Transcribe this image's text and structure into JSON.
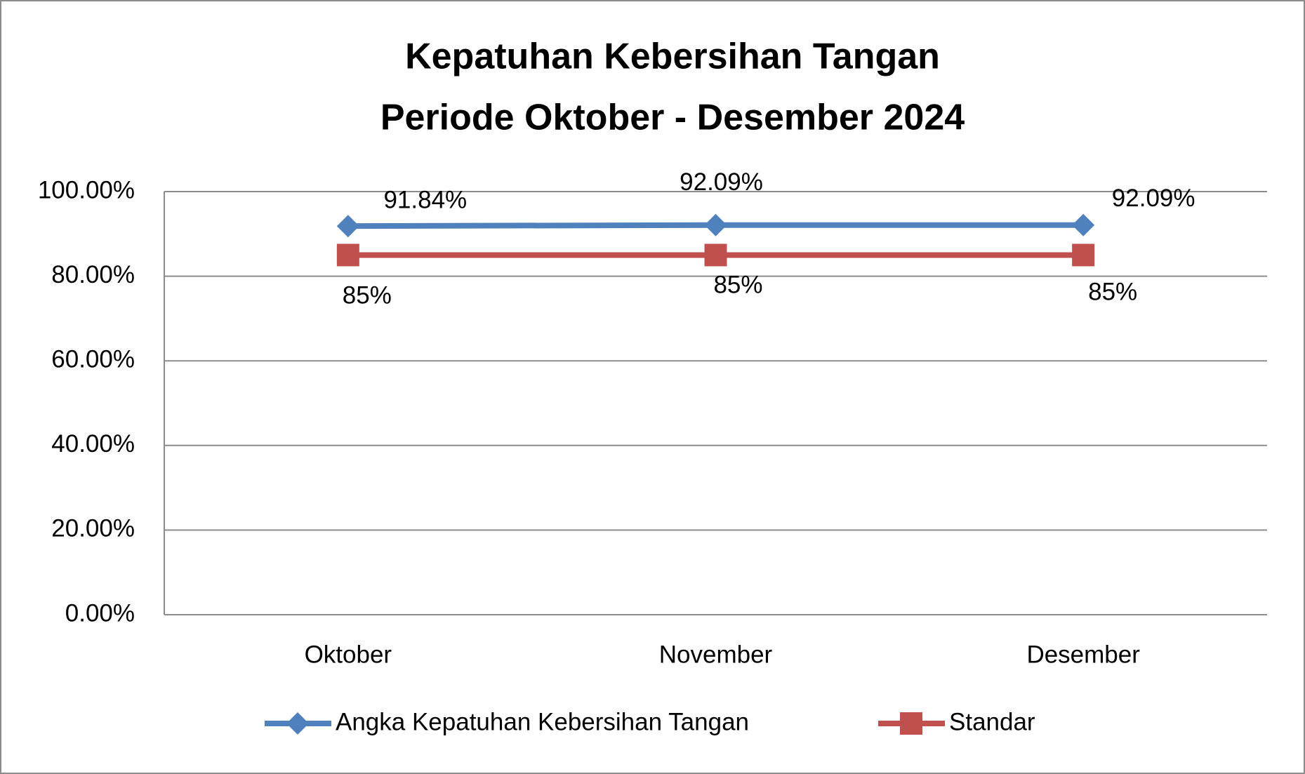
{
  "chart_data": {
    "type": "line",
    "title": "Kepatuhan Kebersihan Tangan",
    "subtitle": "Periode Oktober - Desember 2024",
    "categories": [
      "Oktober",
      "November",
      "Desember"
    ],
    "series": [
      {
        "name": "Angka Kepatuhan Kebersihan Tangan",
        "color": "#4f81bd",
        "marker": "diamond",
        "values": [
          91.84,
          92.09,
          92.09
        ],
        "value_labels": [
          "91.84%",
          "92.09%",
          "92.09%"
        ]
      },
      {
        "name": "Standar",
        "color": "#c0504d",
        "marker": "square",
        "values": [
          85,
          85,
          85
        ],
        "value_labels": [
          "85%",
          "85%",
          "85%"
        ]
      }
    ],
    "ylim": [
      0,
      100
    ],
    "yticks": [
      {
        "value": 0,
        "label": "0.00%"
      },
      {
        "value": 20,
        "label": "20.00%"
      },
      {
        "value": 40,
        "label": "40.00%"
      },
      {
        "value": 60,
        "label": "60.00%"
      },
      {
        "value": 80,
        "label": "80.00%"
      },
      {
        "value": 100,
        "label": "100.00%"
      }
    ],
    "grid": true,
    "legend": "bottom"
  }
}
